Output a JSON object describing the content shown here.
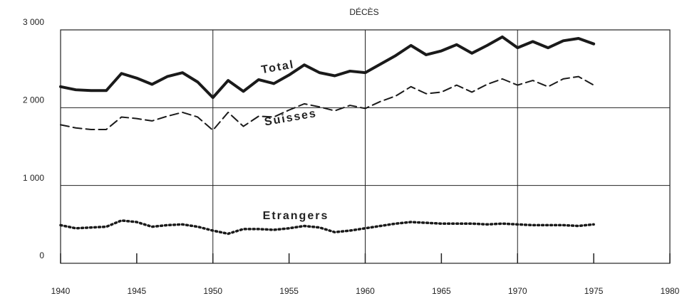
{
  "chart_data": {
    "type": "line",
    "title": "DÉCÈS",
    "x": [
      1940,
      1941,
      1942,
      1943,
      1944,
      1945,
      1946,
      1947,
      1948,
      1949,
      1950,
      1951,
      1952,
      1953,
      1954,
      1955,
      1956,
      1957,
      1958,
      1959,
      1960,
      1961,
      1962,
      1963,
      1964,
      1965,
      1966,
      1967,
      1968,
      1969,
      1970,
      1971,
      1972,
      1973,
      1974,
      1975
    ],
    "series": [
      {
        "name": "Total",
        "color": "#1a1a1a",
        "style": "solid",
        "values": [
          2270,
          2230,
          2220,
          2220,
          2440,
          2380,
          2300,
          2400,
          2450,
          2330,
          2130,
          2350,
          2210,
          2360,
          2310,
          2420,
          2550,
          2450,
          2410,
          2470,
          2450,
          2560,
          2670,
          2800,
          2680,
          2730,
          2810,
          2700,
          2800,
          2910,
          2770,
          2850,
          2770,
          2860,
          2890,
          2820
        ]
      },
      {
        "name": "Suisses",
        "color": "#1a1a1a",
        "style": "dashed",
        "values": [
          1780,
          1740,
          1720,
          1720,
          1880,
          1860,
          1830,
          1890,
          1940,
          1880,
          1710,
          1940,
          1760,
          1890,
          1880,
          1970,
          2050,
          2010,
          1960,
          2030,
          1990,
          2080,
          2150,
          2270,
          2180,
          2200,
          2290,
          2200,
          2300,
          2370,
          2290,
          2350,
          2270,
          2370,
          2400,
          2290
        ]
      },
      {
        "name": "Etrangers",
        "color": "#1a1a1a",
        "style": "dotted",
        "values": [
          490,
          450,
          460,
          470,
          550,
          530,
          470,
          490,
          500,
          470,
          420,
          380,
          440,
          440,
          430,
          450,
          480,
          460,
          400,
          420,
          450,
          480,
          510,
          530,
          520,
          510,
          510,
          510,
          500,
          510,
          500,
          490,
          490,
          490,
          480,
          500
        ]
      }
    ],
    "xlim": [
      1940,
      1980
    ],
    "xticks": [
      1940,
      1945,
      1950,
      1955,
      1960,
      1965,
      1970,
      1975,
      1980
    ],
    "ylim": [
      0,
      3000
    ],
    "yticks": [
      0,
      {
        "value": 1000,
        "label": "1 000"
      },
      {
        "value": 2000,
        "label": "2 000"
      },
      {
        "value": 3000,
        "label": "3 000"
      }
    ],
    "grid": true,
    "xgrid": [
      1950,
      1960,
      1970
    ]
  }
}
